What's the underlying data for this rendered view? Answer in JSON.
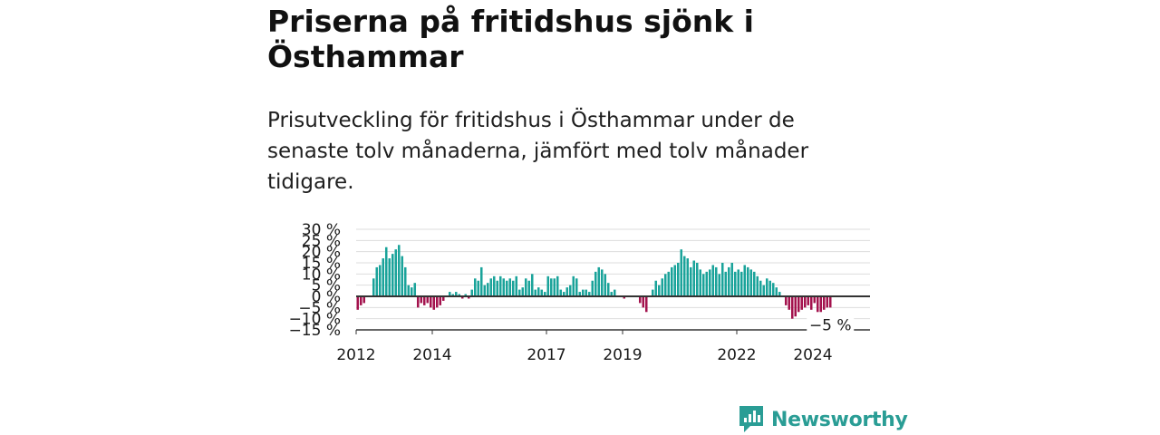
{
  "header": {
    "title": "Priserna på fritidshus sjönk i Östhammar",
    "subtitle": "Prisutveckling för fritidshus i Östhammar under de senaste tolv månaderna, jämfört med tolv månader tidigare."
  },
  "colors": {
    "positive": "#1aa39a",
    "negative": "#a3124d",
    "grid": "#dddddd",
    "zero_line": "#333333",
    "text": "#1a1a1a",
    "brand": "#2a9d95"
  },
  "brand": {
    "name": "Newsworthy",
    "icon": "bar-chart-speech-icon"
  },
  "chart_data": {
    "type": "bar",
    "ylim": [
      -15,
      30
    ],
    "yticks": [
      30,
      25,
      20,
      15,
      10,
      5,
      0,
      -5,
      -10,
      -15
    ],
    "ytick_labels": [
      "30 %",
      "25 %",
      "20 %",
      "15 %",
      "10 %",
      "5 %",
      "0 %",
      "−5 %",
      "−10 %",
      "−15 %"
    ],
    "xtick_labels": [
      "2012",
      "2014",
      "2017",
      "2019",
      "2022",
      "2024"
    ],
    "xtick_positions": [
      "2012-01",
      "2014-01",
      "2017-01",
      "2019-01",
      "2022-01",
      "2024-01"
    ],
    "x_start": "2012-01",
    "x_end": "2025-07",
    "grid": true,
    "annotation": "−5 %",
    "values": [
      -6,
      -4,
      -3,
      0,
      0,
      8,
      13,
      14,
      17,
      22,
      17,
      19,
      21,
      23,
      18,
      13,
      5,
      4,
      6,
      -5,
      -3,
      -4,
      -3,
      -5,
      -6,
      -5,
      -4,
      -2,
      0,
      2,
      1,
      2,
      1,
      -1,
      1,
      -1,
      3,
      8,
      7,
      13,
      5,
      6,
      8,
      9,
      7,
      9,
      8,
      7,
      8,
      7,
      9,
      3,
      4,
      8,
      7,
      10,
      3,
      4,
      3,
      2,
      9,
      8,
      8,
      9,
      3,
      2,
      4,
      5,
      9,
      8,
      2,
      3,
      3,
      2,
      7,
      11,
      13,
      12,
      10,
      6,
      2,
      3,
      0,
      0,
      -1,
      0,
      0,
      0,
      0,
      -3,
      -5,
      -7,
      0,
      3,
      7,
      5,
      8,
      10,
      11,
      13,
      14,
      15,
      21,
      18,
      17,
      13,
      16,
      15,
      12,
      10,
      11,
      12,
      14,
      13,
      10,
      15,
      11,
      13,
      15,
      11,
      12,
      11,
      14,
      13,
      12,
      11,
      9,
      7,
      5,
      8,
      7,
      6,
      4,
      2,
      0,
      -4,
      -6,
      -10,
      -9,
      -7,
      -6,
      -5,
      -4,
      -6,
      -3,
      -7,
      -7,
      -6,
      -5,
      -5
    ]
  }
}
